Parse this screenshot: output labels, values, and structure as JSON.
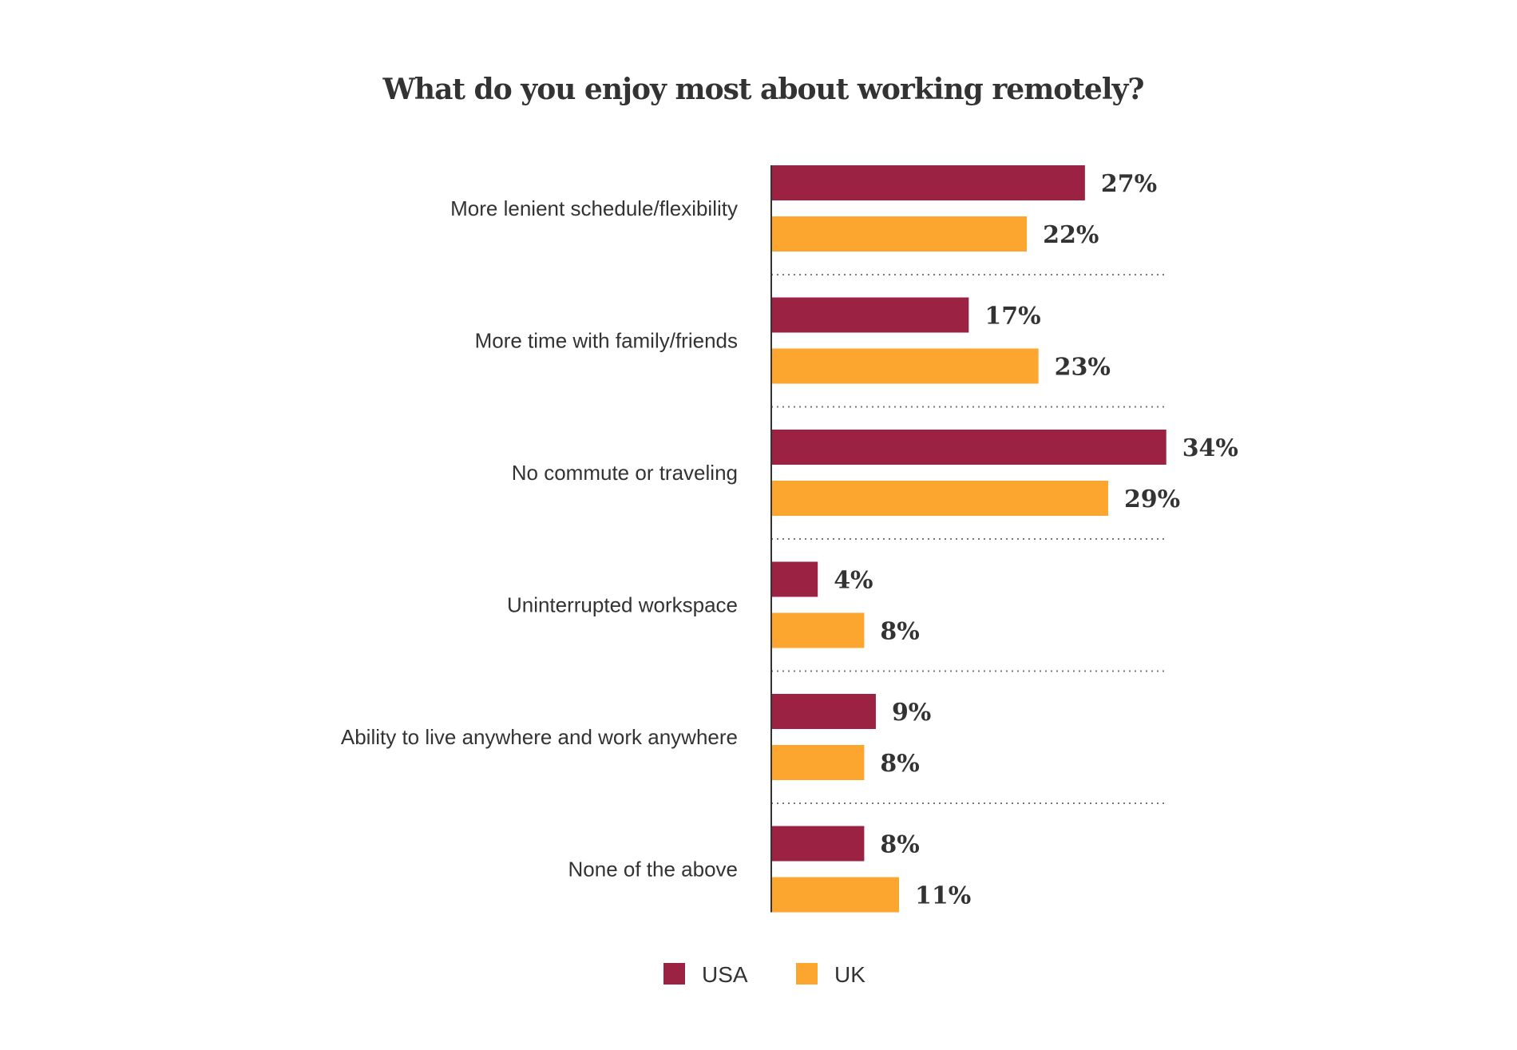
{
  "chart_data": {
    "type": "bar",
    "orientation": "horizontal",
    "title": "What do you enjoy most about working remotely?",
    "categories": [
      "More lenient schedule/flexibility",
      "More time with family/friends",
      "No commute or traveling",
      "Uninterrupted workspace",
      "Ability to live anywhere and work anywhere",
      "None of the above"
    ],
    "series": [
      {
        "name": "USA",
        "color": "#9b2242",
        "values": [
          27,
          17,
          34,
          4,
          9,
          8
        ]
      },
      {
        "name": "UK",
        "color": "#fca52f",
        "values": [
          22,
          23,
          29,
          8,
          8,
          11
        ]
      }
    ],
    "value_labels": {
      "USA": [
        "27%",
        "17%",
        "34%",
        "4%",
        "9%",
        "8%"
      ],
      "UK": [
        "22%",
        "23%",
        "29%",
        "8%",
        "8%",
        "11%"
      ]
    },
    "unit": "%",
    "xlim": [
      0,
      34
    ],
    "grid": false,
    "separators": "dotted",
    "legend": "bottom-center"
  }
}
